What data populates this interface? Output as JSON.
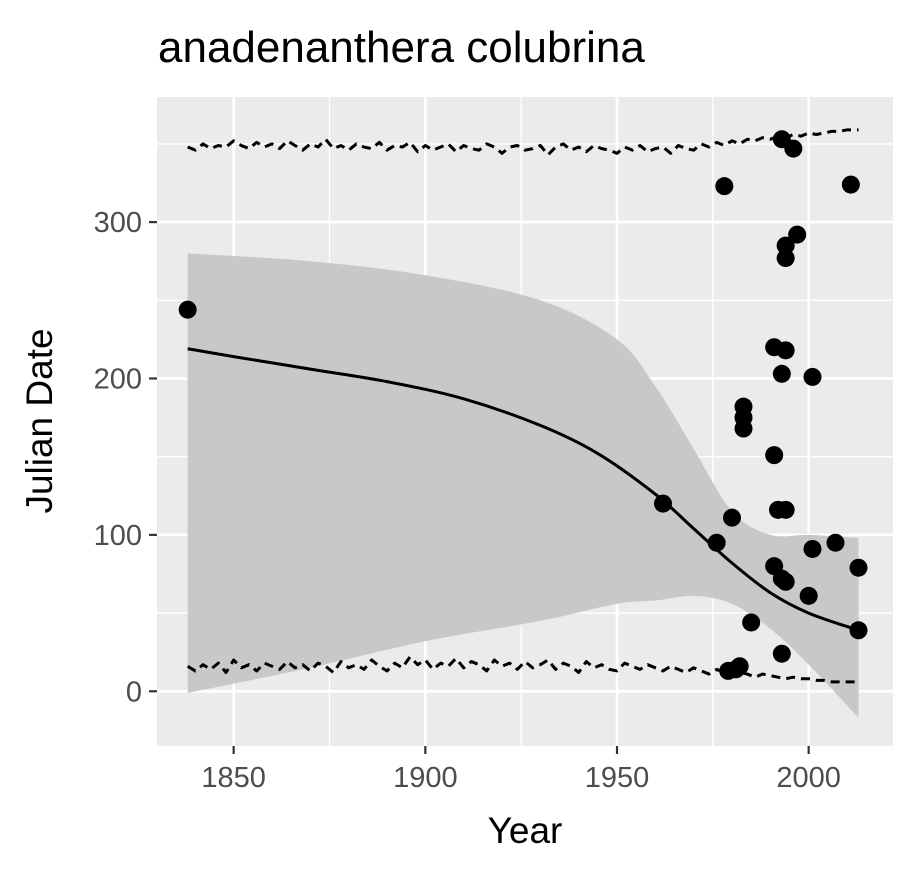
{
  "chart_data": {
    "type": "scatter",
    "title": "anadenanthera colubrina",
    "xlabel": "Year",
    "ylabel": "Julian Date",
    "xlim": [
      1830,
      2022
    ],
    "ylim": [
      -35,
      380
    ],
    "x_ticks": [
      1850,
      1900,
      1950,
      2000
    ],
    "x_tick_labels": [
      "1850",
      "1900",
      "1950",
      "2000"
    ],
    "y_ticks": [
      0,
      100,
      200,
      300
    ],
    "y_tick_labels": [
      "0",
      "100",
      "200",
      "300"
    ],
    "grid": true,
    "legend": "none",
    "colors": {
      "panel": "#ebebeb",
      "grid": "#ffffff",
      "ribbon": "#c8c8c8",
      "points": "#000000",
      "fit_line": "#000000",
      "tick_label": "#4d4d4d"
    },
    "points": [
      {
        "x": 1838,
        "y": 244
      },
      {
        "x": 1962,
        "y": 120
      },
      {
        "x": 1976,
        "y": 95
      },
      {
        "x": 1978,
        "y": 323
      },
      {
        "x": 1979,
        "y": 13
      },
      {
        "x": 1980,
        "y": 111
      },
      {
        "x": 1981,
        "y": 14
      },
      {
        "x": 1982,
        "y": 16
      },
      {
        "x": 1983,
        "y": 182
      },
      {
        "x": 1983,
        "y": 175
      },
      {
        "x": 1983,
        "y": 168
      },
      {
        "x": 1985,
        "y": 44
      },
      {
        "x": 1991,
        "y": 220
      },
      {
        "x": 1991,
        "y": 151
      },
      {
        "x": 1991,
        "y": 80
      },
      {
        "x": 1992,
        "y": 116
      },
      {
        "x": 1993,
        "y": 353
      },
      {
        "x": 1993,
        "y": 203
      },
      {
        "x": 1993,
        "y": 72
      },
      {
        "x": 1993,
        "y": 24
      },
      {
        "x": 1994,
        "y": 285
      },
      {
        "x": 1994,
        "y": 277
      },
      {
        "x": 1994,
        "y": 218
      },
      {
        "x": 1994,
        "y": 116
      },
      {
        "x": 1994,
        "y": 70
      },
      {
        "x": 1996,
        "y": 347
      },
      {
        "x": 1997,
        "y": 292
      },
      {
        "x": 2000,
        "y": 61
      },
      {
        "x": 2001,
        "y": 201
      },
      {
        "x": 2001,
        "y": 91
      },
      {
        "x": 2007,
        "y": 95
      },
      {
        "x": 2011,
        "y": 324
      },
      {
        "x": 2013,
        "y": 79
      },
      {
        "x": 2013,
        "y": 39
      }
    ],
    "fit_line": {
      "x": [
        1838,
        1850,
        1870,
        1890,
        1910,
        1930,
        1945,
        1960,
        1970,
        1980,
        1990,
        2000,
        2013
      ],
      "y": [
        219,
        214,
        206,
        198,
        187,
        170,
        152,
        126,
        104,
        82,
        63,
        50,
        39
      ]
    },
    "confidence_band": {
      "x": [
        1838,
        1870,
        1900,
        1930,
        1950,
        1960,
        1970,
        1980,
        1990,
        2000,
        2013
      ],
      "upper": [
        280,
        275,
        266,
        250,
        225,
        195,
        155,
        115,
        100,
        100,
        98
      ],
      "lower": [
        -1,
        15,
        32,
        45,
        56,
        58,
        61,
        56,
        40,
        17,
        -17
      ]
    },
    "dashed_upper": {
      "x": [
        1838,
        1840,
        1842,
        1844,
        1846,
        1848,
        1850,
        1852,
        1854,
        1856,
        1858,
        1860,
        1862,
        1864,
        1866,
        1868,
        1870,
        1872,
        1874,
        1876,
        1878,
        1880,
        1882,
        1884,
        1886,
        1888,
        1890,
        1892,
        1894,
        1896,
        1898,
        1900,
        1902,
        1904,
        1906,
        1908,
        1910,
        1912,
        1914,
        1916,
        1918,
        1920,
        1922,
        1924,
        1926,
        1928,
        1930,
        1932,
        1934,
        1936,
        1938,
        1940,
        1942,
        1944,
        1946,
        1948,
        1950,
        1952,
        1954,
        1956,
        1958,
        1960,
        1962,
        1964,
        1966,
        1968,
        1970,
        1972,
        1974,
        1976,
        1978,
        1980,
        1982,
        1984,
        1986,
        1988,
        1990,
        1992,
        1994,
        1996,
        1998,
        2000,
        2002,
        2004,
        2006,
        2008,
        2010,
        2013
      ],
      "y": [
        348,
        346,
        350,
        347,
        349,
        348,
        352,
        349,
        347,
        351,
        348,
        350,
        347,
        352,
        349,
        346,
        350,
        348,
        353,
        347,
        349,
        346,
        350,
        348,
        347,
        351,
        346,
        349,
        348,
        351,
        345,
        349,
        346,
        348,
        350,
        345,
        349,
        347,
        346,
        350,
        348,
        344,
        348,
        349,
        346,
        347,
        349,
        343,
        348,
        350,
        346,
        348,
        345,
        349,
        347,
        346,
        344,
        348,
        346,
        349,
        345,
        347,
        348,
        344,
        349,
        347,
        346,
        350,
        348,
        351,
        349,
        352,
        350,
        353,
        352,
        354,
        353,
        355,
        354,
        356,
        355,
        357,
        356,
        357,
        358,
        358,
        359,
        359
      ]
    },
    "dashed_lower": {
      "x": [
        1838,
        1840,
        1842,
        1844,
        1846,
        1848,
        1850,
        1852,
        1854,
        1856,
        1858,
        1860,
        1862,
        1864,
        1866,
        1868,
        1870,
        1872,
        1874,
        1876,
        1878,
        1880,
        1882,
        1884,
        1886,
        1888,
        1890,
        1892,
        1894,
        1896,
        1898,
        1900,
        1902,
        1904,
        1906,
        1908,
        1910,
        1912,
        1914,
        1916,
        1918,
        1920,
        1922,
        1924,
        1926,
        1928,
        1930,
        1932,
        1934,
        1936,
        1938,
        1940,
        1942,
        1944,
        1946,
        1948,
        1950,
        1952,
        1954,
        1956,
        1958,
        1960,
        1962,
        1964,
        1966,
        1968,
        1970,
        1972,
        1974,
        1976,
        1978,
        1980,
        1982,
        1984,
        1986,
        1988,
        1990,
        1992,
        1994,
        1996,
        1998,
        2000,
        2002,
        2004,
        2006,
        2008,
        2010,
        2013
      ],
      "y": [
        16,
        13,
        17,
        14,
        18,
        12,
        20,
        15,
        17,
        13,
        18,
        16,
        14,
        19,
        15,
        17,
        13,
        18,
        16,
        12,
        19,
        15,
        17,
        14,
        20,
        16,
        13,
        18,
        15,
        22,
        17,
        20,
        14,
        18,
        16,
        21,
        15,
        19,
        17,
        13,
        20,
        16,
        18,
        14,
        19,
        15,
        17,
        20,
        14,
        18,
        16,
        12,
        19,
        15,
        17,
        14,
        13,
        18,
        16,
        14,
        17,
        15,
        13,
        16,
        14,
        12,
        15,
        13,
        11,
        14,
        12,
        10,
        12,
        11,
        9,
        11,
        10,
        9,
        8,
        9,
        8,
        8,
        7,
        7,
        6,
        6,
        6,
        6
      ]
    }
  }
}
